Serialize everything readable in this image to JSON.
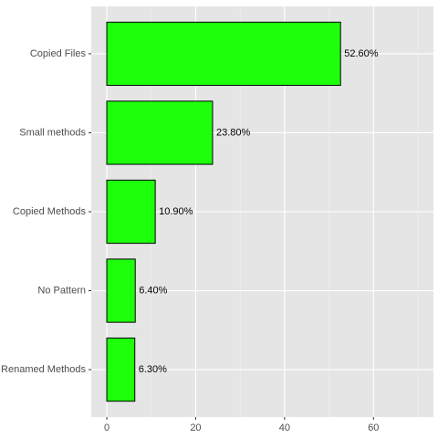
{
  "chart_data": {
    "type": "barh",
    "categories": [
      "Copied Files",
      "Small methods",
      "Copied Methods",
      "No Pattern",
      "Renamed Methods"
    ],
    "values": [
      52.6,
      23.8,
      10.9,
      6.4,
      6.3
    ],
    "value_labels": [
      "52.60%",
      "23.80%",
      "10.90%",
      "6.40%",
      "6.30%"
    ],
    "color": "#1eff0c",
    "xlim": [
      -3.5,
      73.5
    ],
    "xticks": [
      0,
      20,
      40,
      60
    ],
    "minor_xticks": [
      10,
      30,
      50,
      70
    ],
    "grid": true
  }
}
